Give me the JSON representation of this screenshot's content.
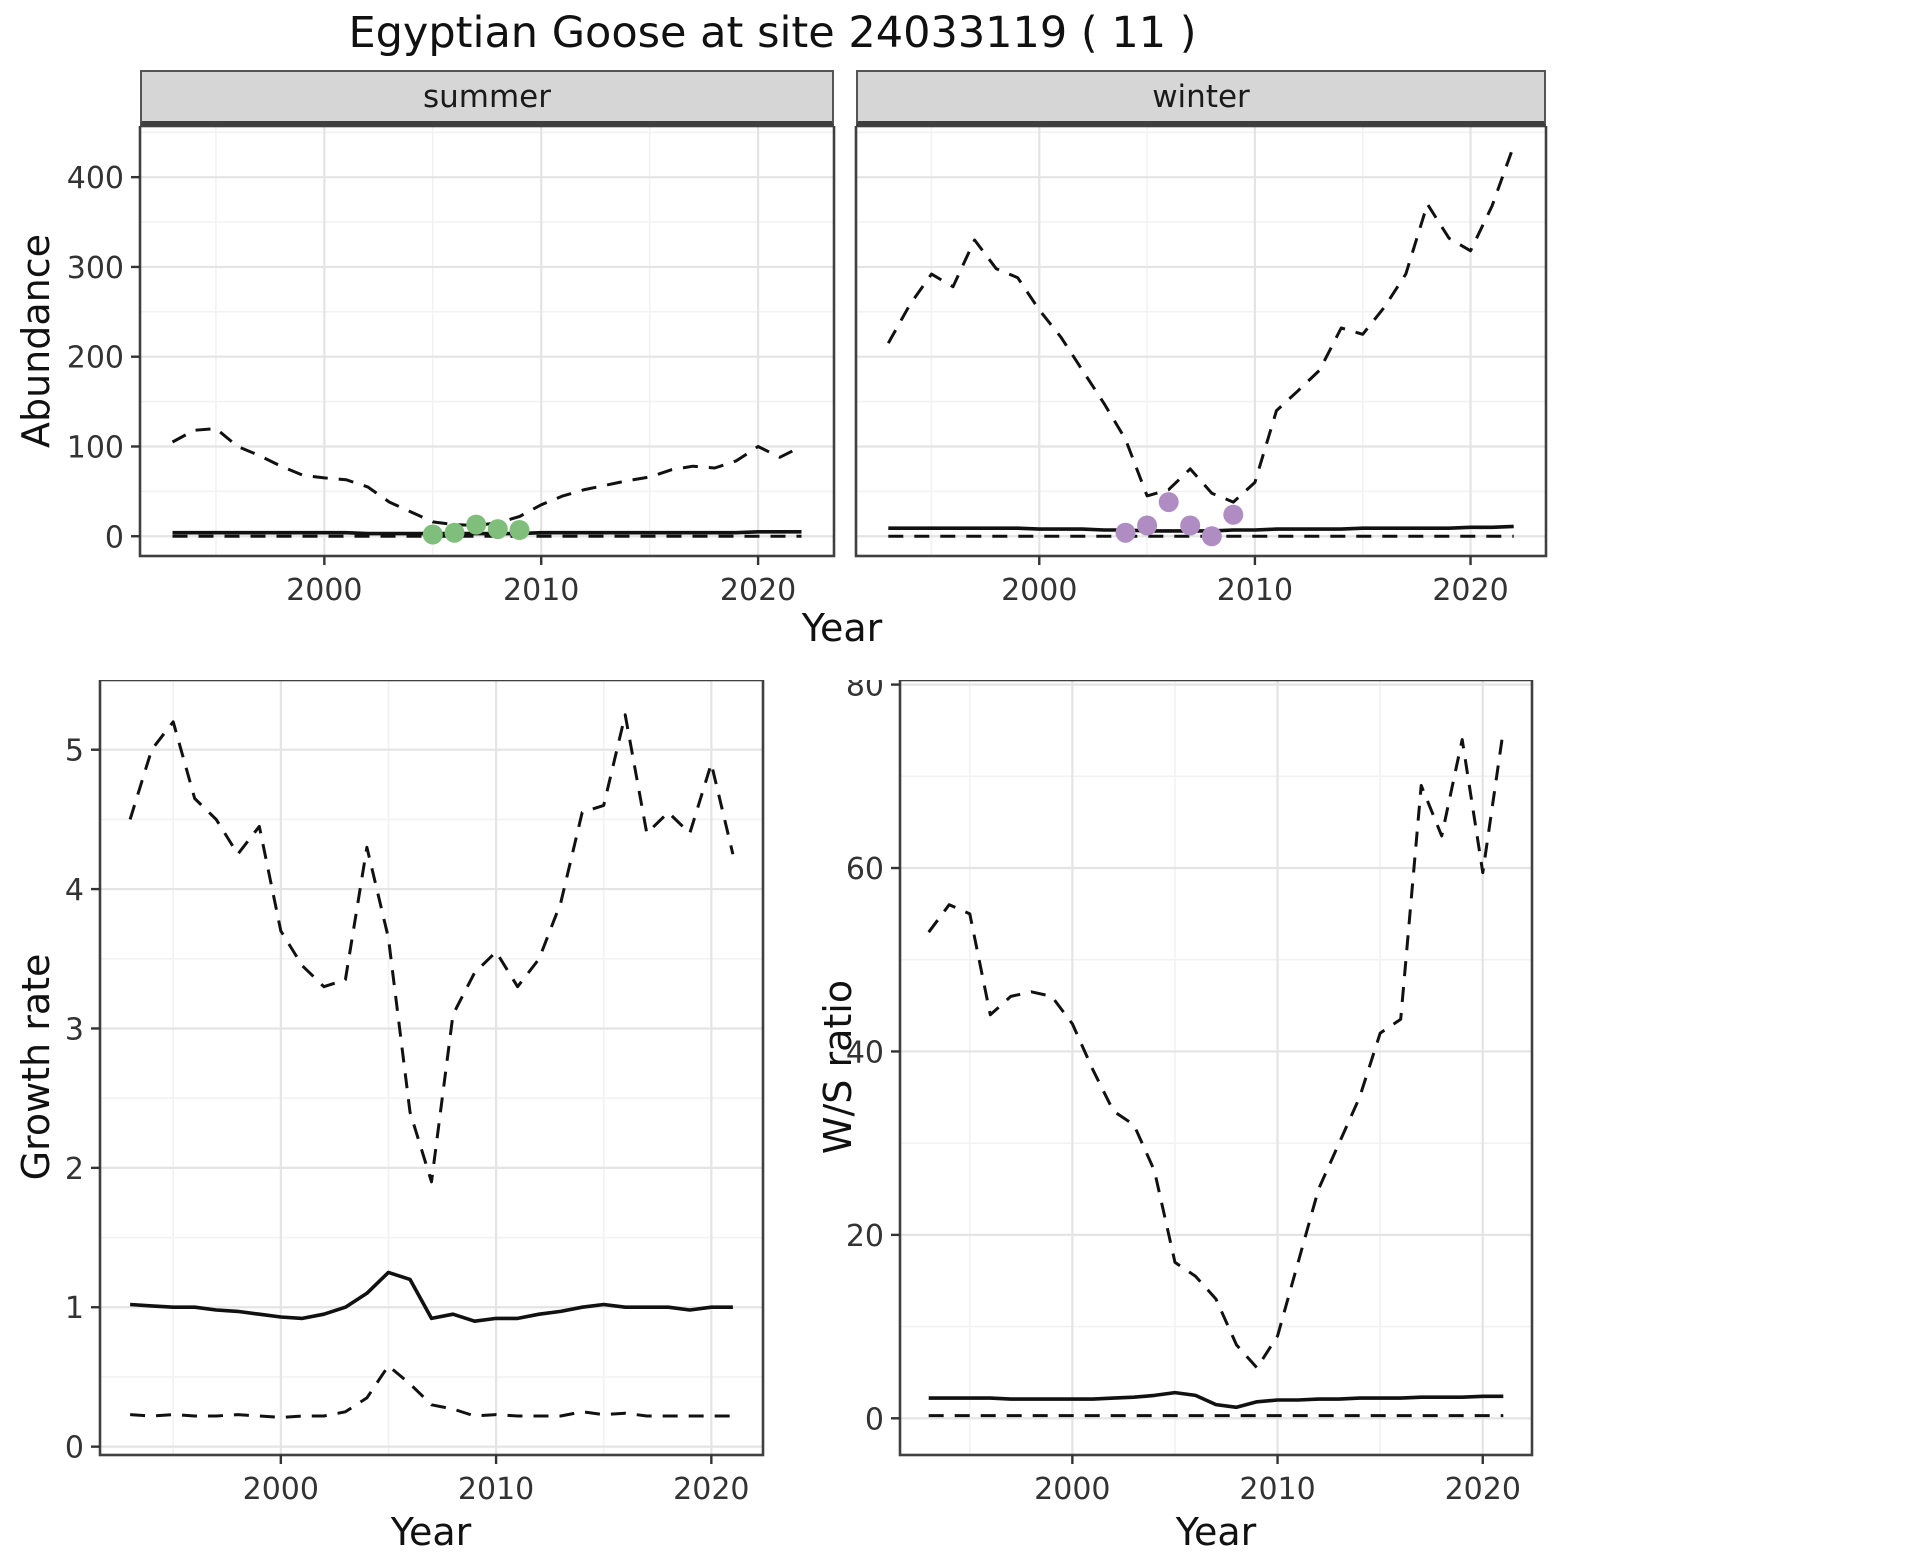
{
  "title": "Egyptian Goose at site 24033119 ( 11 )",
  "colors": {
    "line": "#111111",
    "summer_points": "#7fbf7b",
    "winter_points": "#af8dc3"
  },
  "chart_data": [
    {
      "id": "abundance-summer",
      "type": "line",
      "facet": "summer",
      "xlabel": "Year",
      "ylabel": "Abundance",
      "xlim": [
        1991.5,
        2023.5
      ],
      "ylim": [
        -22,
        457
      ],
      "xticks": [
        2000,
        2010,
        2020
      ],
      "yticks": [
        0,
        100,
        200,
        300,
        400
      ],
      "x": [
        1993,
        1994,
        1995,
        1996,
        1997,
        1998,
        1999,
        2000,
        2001,
        2002,
        2003,
        2004,
        2005,
        2006,
        2007,
        2008,
        2009,
        2010,
        2011,
        2012,
        2013,
        2014,
        2015,
        2016,
        2017,
        2018,
        2019,
        2020,
        2021,
        2022
      ],
      "series": [
        {
          "name": "upper-credible",
          "style": "dashed",
          "values": [
            105,
            118,
            120,
            100,
            90,
            78,
            68,
            65,
            63,
            55,
            38,
            27,
            16,
            13,
            12,
            15,
            22,
            35,
            45,
            52,
            57,
            62,
            66,
            74,
            78,
            76,
            84,
            100,
            88,
            100
          ]
        },
        {
          "name": "median",
          "style": "solid",
          "values": [
            4,
            4,
            4,
            4,
            4,
            4,
            4,
            4,
            4,
            3,
            3,
            3,
            3,
            3,
            3,
            3,
            3,
            4,
            4,
            4,
            4,
            4,
            4,
            4,
            4,
            4,
            4,
            5,
            5,
            5
          ]
        },
        {
          "name": "lower-credible",
          "style": "dashed",
          "values": [
            0,
            0,
            0,
            0,
            0,
            0,
            0,
            0,
            0,
            0,
            0,
            0,
            0,
            0,
            0,
            0,
            0,
            0,
            0,
            0,
            0,
            0,
            0,
            0,
            0,
            0,
            0,
            0,
            0,
            0
          ]
        }
      ],
      "points": {
        "name": "observed-count-point",
        "color": "#7fbf7b",
        "x": [
          2005,
          2006,
          2007,
          2008,
          2009
        ],
        "y": [
          2,
          4,
          13,
          8,
          7
        ]
      }
    },
    {
      "id": "abundance-winter",
      "type": "line",
      "facet": "winter",
      "xlabel": "Year",
      "ylabel": "Abundance",
      "xlim": [
        1991.5,
        2023.5
      ],
      "ylim": [
        -22,
        457
      ],
      "xticks": [
        2000,
        2010,
        2020
      ],
      "yticks": [
        0,
        100,
        200,
        300,
        400
      ],
      "x": [
        1993,
        1994,
        1995,
        1996,
        1997,
        1998,
        1999,
        2000,
        2001,
        2002,
        2003,
        2004,
        2005,
        2006,
        2007,
        2008,
        2009,
        2010,
        2011,
        2012,
        2013,
        2014,
        2015,
        2016,
        2017,
        2018,
        2019,
        2020,
        2021,
        2022
      ],
      "series": [
        {
          "name": "upper-credible",
          "style": "dashed",
          "values": [
            215,
            258,
            292,
            278,
            330,
            298,
            288,
            252,
            222,
            185,
            148,
            108,
            45,
            52,
            75,
            48,
            38,
            60,
            140,
            162,
            185,
            232,
            225,
            255,
            292,
            370,
            332,
            318,
            368,
            435
          ]
        },
        {
          "name": "median",
          "style": "solid",
          "values": [
            9,
            9,
            9,
            9,
            9,
            9,
            9,
            8,
            8,
            8,
            7,
            7,
            6,
            6,
            6,
            6,
            7,
            7,
            8,
            8,
            8,
            8,
            9,
            9,
            9,
            9,
            9,
            10,
            10,
            11
          ]
        },
        {
          "name": "lower-credible",
          "style": "dashed",
          "values": [
            0,
            0,
            0,
            0,
            0,
            0,
            0,
            0,
            0,
            0,
            0,
            0,
            0,
            0,
            0,
            0,
            0,
            0,
            0,
            0,
            0,
            0,
            0,
            0,
            0,
            0,
            0,
            0,
            0,
            0
          ]
        }
      ],
      "points": {
        "name": "observed-count-point",
        "color": "#af8dc3",
        "x": [
          2004,
          2005,
          2006,
          2007,
          2008,
          2009
        ],
        "y": [
          4,
          12,
          38,
          12,
          0,
          24
        ]
      }
    },
    {
      "id": "growth-rate",
      "type": "line",
      "facet": "",
      "xlabel": "Year",
      "ylabel": "Growth rate",
      "xlim": [
        1991.6,
        2022.4
      ],
      "ylim": [
        -0.06,
        5.5
      ],
      "xticks": [
        2000,
        2010,
        2020
      ],
      "yticks": [
        0,
        1,
        2,
        3,
        4,
        5
      ],
      "x": [
        1993,
        1994,
        1995,
        1996,
        1997,
        1998,
        1999,
        2000,
        2001,
        2002,
        2003,
        2004,
        2005,
        2006,
        2007,
        2008,
        2009,
        2010,
        2011,
        2012,
        2013,
        2014,
        2015,
        2016,
        2017,
        2018,
        2019,
        2020,
        2021
      ],
      "series": [
        {
          "name": "upper-credible",
          "style": "dashed",
          "values": [
            4.5,
            5.0,
            5.2,
            4.65,
            4.5,
            4.25,
            4.45,
            3.7,
            3.45,
            3.3,
            3.35,
            4.3,
            3.65,
            2.4,
            1.9,
            3.1,
            3.4,
            3.55,
            3.3,
            3.5,
            3.9,
            4.55,
            4.6,
            5.25,
            4.4,
            4.55,
            4.4,
            4.9,
            4.25
          ]
        },
        {
          "name": "median",
          "style": "solid",
          "values": [
            1.02,
            1.01,
            1.0,
            1.0,
            0.98,
            0.97,
            0.95,
            0.93,
            0.92,
            0.95,
            1.0,
            1.1,
            1.25,
            1.2,
            0.92,
            0.95,
            0.9,
            0.92,
            0.92,
            0.95,
            0.97,
            1.0,
            1.02,
            1.0,
            1.0,
            1.0,
            0.98,
            1.0,
            1.0
          ]
        },
        {
          "name": "lower-credible",
          "style": "dashed",
          "values": [
            0.23,
            0.22,
            0.23,
            0.22,
            0.22,
            0.23,
            0.22,
            0.21,
            0.22,
            0.22,
            0.25,
            0.35,
            0.58,
            0.45,
            0.3,
            0.27,
            0.22,
            0.23,
            0.22,
            0.22,
            0.22,
            0.25,
            0.23,
            0.24,
            0.22,
            0.22,
            0.22,
            0.22,
            0.22
          ]
        }
      ],
      "points": null
    },
    {
      "id": "ws-ratio",
      "type": "line",
      "facet": "",
      "xlabel": "Year",
      "ylabel": "W/S ratio",
      "xlim": [
        1991.6,
        2022.4
      ],
      "ylim": [
        -4,
        80.5
      ],
      "xticks": [
        2000,
        2010,
        2020
      ],
      "yticks": [
        0,
        20,
        40,
        60,
        80
      ],
      "x": [
        1993,
        1994,
        1995,
        1996,
        1997,
        1998,
        1999,
        2000,
        2001,
        2002,
        2003,
        2004,
        2005,
        2006,
        2007,
        2008,
        2009,
        2010,
        2011,
        2012,
        2013,
        2014,
        2015,
        2016,
        2017,
        2018,
        2019,
        2020,
        2021
      ],
      "series": [
        {
          "name": "upper-credible",
          "style": "dashed",
          "values": [
            53,
            56,
            55,
            44,
            46,
            46.5,
            46,
            43,
            38,
            33.5,
            32,
            27,
            17,
            15.5,
            13,
            8,
            5.5,
            9,
            17,
            25,
            30,
            35,
            42,
            43.5,
            69,
            63.5,
            74,
            59.5,
            75
          ]
        },
        {
          "name": "median",
          "style": "solid",
          "values": [
            2.2,
            2.2,
            2.2,
            2.2,
            2.1,
            2.1,
            2.1,
            2.1,
            2.1,
            2.2,
            2.3,
            2.5,
            2.8,
            2.5,
            1.5,
            1.2,
            1.8,
            2.0,
            2.0,
            2.1,
            2.1,
            2.2,
            2.2,
            2.2,
            2.3,
            2.3,
            2.3,
            2.4,
            2.4
          ]
        },
        {
          "name": "lower-credible",
          "style": "dashed",
          "values": [
            0.3,
            0.3,
            0.3,
            0.3,
            0.3,
            0.3,
            0.3,
            0.3,
            0.3,
            0.3,
            0.3,
            0.3,
            0.3,
            0.3,
            0.3,
            0.3,
            0.3,
            0.3,
            0.3,
            0.3,
            0.3,
            0.3,
            0.3,
            0.3,
            0.3,
            0.3,
            0.3,
            0.3,
            0.3
          ]
        }
      ],
      "points": null
    }
  ]
}
